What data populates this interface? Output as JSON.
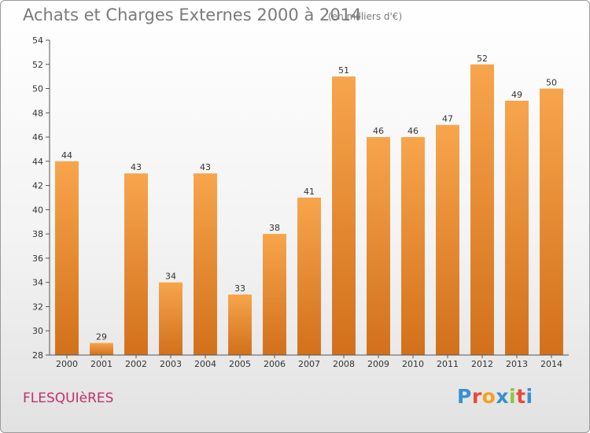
{
  "header": {
    "title": "Achats et Charges Externes 2000 à 2014",
    "subtitle": "(en milliers d'€)"
  },
  "footer": {
    "town": "FLESQUIèRES",
    "logo": [
      "P",
      "r",
      "o",
      "x",
      "i",
      "t",
      "i"
    ]
  },
  "colors": {
    "bar_light": "#f7a54c",
    "bar_dark": "#d2701b",
    "town": "#c0306c",
    "title": "#7a7a7a"
  },
  "chart_data": {
    "type": "bar",
    "title": "Achats et Charges Externes 2000 à 2014",
    "subtitle": "(en milliers d'€)",
    "xlabel": "",
    "ylabel": "",
    "categories": [
      "2000",
      "2001",
      "2002",
      "2003",
      "2004",
      "2005",
      "2006",
      "2007",
      "2008",
      "2009",
      "2010",
      "2011",
      "2012",
      "2013",
      "2014"
    ],
    "values": [
      44,
      29,
      43,
      34,
      43,
      33,
      38,
      41,
      51,
      46,
      46,
      47,
      52,
      49,
      50
    ],
    "ylim": [
      28,
      54
    ],
    "yticks": [
      28,
      30,
      32,
      34,
      36,
      38,
      40,
      42,
      44,
      46,
      48,
      50,
      52,
      54
    ],
    "grid": false,
    "legend": "none"
  }
}
